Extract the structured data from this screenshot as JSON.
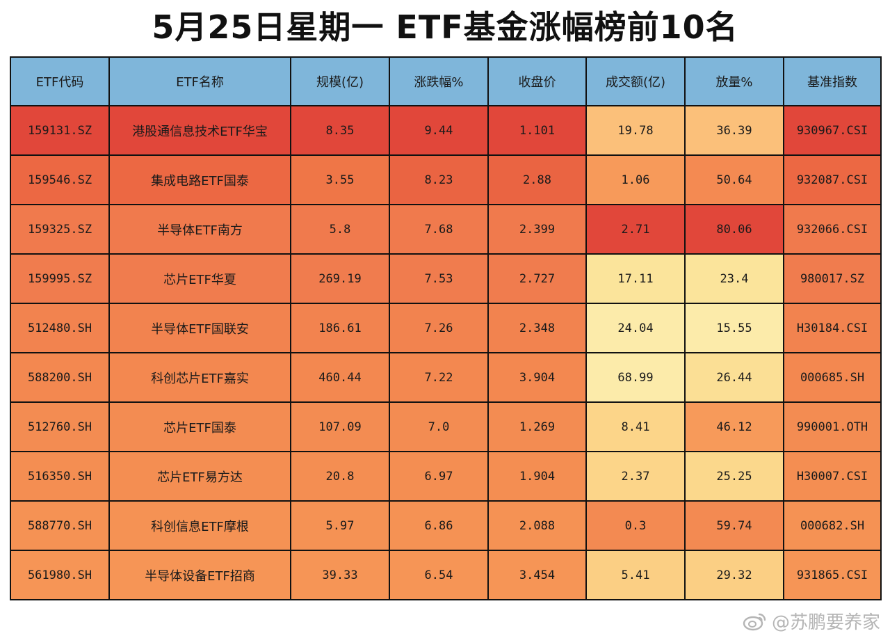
{
  "title": "5月25日星期一 ETF基金涨幅榜前10名",
  "watermark": "@苏鹏要养家",
  "colors": {
    "header": "#7fb6da",
    "heat_high": "#e1483a",
    "heat_mid": "#f07a4d",
    "heat_low": "#fbe49b",
    "border": "#111111"
  },
  "chart_data": {
    "type": "table",
    "columns": [
      "ETF代码",
      "ETF名称",
      "规模(亿)",
      "涨跌幅%",
      "收盘价",
      "成交额(亿)",
      "放量%",
      "基准指数"
    ],
    "rows": [
      [
        "159131.SZ",
        "港股通信息技术ETF华宝",
        "8.35",
        "9.44",
        "1.101",
        "19.78",
        "36.39",
        "930967.CSI"
      ],
      [
        "159546.SZ",
        "集成电路ETF国泰",
        "3.55",
        "8.23",
        "2.88",
        "1.06",
        "50.64",
        "932087.CSI"
      ],
      [
        "159325.SZ",
        "半导体ETF南方",
        "5.8",
        "7.68",
        "2.399",
        "2.71",
        "80.06",
        "932066.CSI"
      ],
      [
        "159995.SZ",
        "芯片ETF华夏",
        "269.19",
        "7.53",
        "2.727",
        "17.11",
        "23.4",
        "980017.SZ"
      ],
      [
        "512480.SH",
        "半导体ETF国联安",
        "186.61",
        "7.26",
        "2.348",
        "24.04",
        "15.55",
        "H30184.CSI"
      ],
      [
        "588200.SH",
        "科创芯片ETF嘉实",
        "460.44",
        "7.22",
        "3.904",
        "68.99",
        "26.44",
        "000685.SH"
      ],
      [
        "512760.SH",
        "芯片ETF国泰",
        "107.09",
        "7.0",
        "1.269",
        "8.41",
        "46.12",
        "990001.OTH"
      ],
      [
        "516350.SH",
        "芯片ETF易方达",
        "20.8",
        "6.97",
        "1.904",
        "2.37",
        "25.25",
        "H30007.CSI"
      ],
      [
        "588770.SH",
        "科创信息ETF摩根",
        "5.97",
        "6.86",
        "2.088",
        "0.3",
        "59.74",
        "000682.SH"
      ],
      [
        "561980.SH",
        "半导体设备ETF招商",
        "39.33",
        "6.54",
        "3.454",
        "5.41",
        "29.32",
        "931865.CSI"
      ]
    ],
    "cell_colors": [
      [
        "#e1473a",
        "#e1473a",
        "#e1473a",
        "#e1473a",
        "#e1473a",
        "#fbc07a",
        "#fbc07a",
        "#e1473a"
      ],
      [
        "#ec6843",
        "#ec6843",
        "#ef7647",
        "#ea6442",
        "#ea6442",
        "#f79a5a",
        "#f48a52",
        "#ec6843"
      ],
      [
        "#f07a4d",
        "#f07a4d",
        "#f07a4d",
        "#f07a4d",
        "#f07a4d",
        "#e1473a",
        "#e1473a",
        "#f07a4d"
      ],
      [
        "#f07c4e",
        "#f07c4e",
        "#f07c4e",
        "#f07c4e",
        "#f07c4e",
        "#fbe49b",
        "#fbe49b",
        "#f07c4e"
      ],
      [
        "#f2834f",
        "#f2834f",
        "#f2834f",
        "#f2834f",
        "#f2834f",
        "#fcebaa",
        "#fcebaa",
        "#f2834f"
      ],
      [
        "#f38850",
        "#f38850",
        "#f38850",
        "#f38850",
        "#f38850",
        "#fcebaa",
        "#fbdf95",
        "#f38850"
      ],
      [
        "#f38c52",
        "#f38c52",
        "#f38c52",
        "#f38c52",
        "#f38c52",
        "#fcd589",
        "#f79a5a",
        "#f38c52"
      ],
      [
        "#f48e52",
        "#f48e52",
        "#f48e52",
        "#f48e52",
        "#f48e52",
        "#fcd589",
        "#fbd88c",
        "#f48e52"
      ],
      [
        "#f59254",
        "#f59254",
        "#f59254",
        "#f59254",
        "#f59254",
        "#f38a52",
        "#f38a52",
        "#f59254"
      ],
      [
        "#f69556",
        "#f69556",
        "#f69556",
        "#f69556",
        "#f69556",
        "#fbcf84",
        "#fbcf84",
        "#f69556"
      ]
    ]
  }
}
